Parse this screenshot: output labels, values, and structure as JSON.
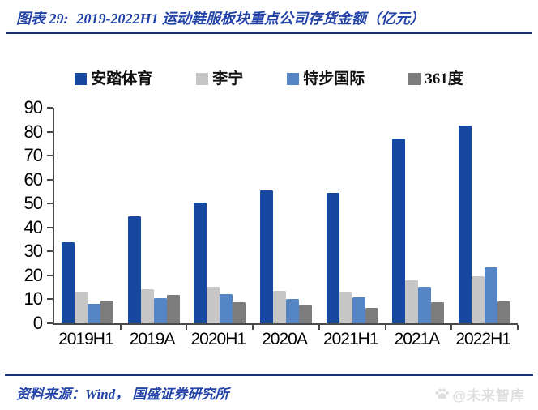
{
  "header": {
    "figure_label": "图表 29:",
    "title": "2019-2022H1 运动鞋服板块重点公司存货金额（亿元）"
  },
  "footer": {
    "source": "资料来源：Wind， 国盛证券研究所",
    "watermark": "@未来智库"
  },
  "colors": {
    "title_blue": "#2343A6",
    "rule_navy": "#1B2F73",
    "axis_gray": "#4A4A4A",
    "watermark_gray": "#DEDEDE"
  },
  "chart_data": {
    "type": "bar",
    "title": "2019-2022H1 运动鞋服板块重点公司存货金额（亿元）",
    "unit": "亿元",
    "categories": [
      "2019H1",
      "2019A",
      "2020H1",
      "2020A",
      "2021H1",
      "2021A",
      "2022H1"
    ],
    "series": [
      {
        "name": "安踏体育",
        "color": "#1648A0",
        "values": [
          34.0,
          44.5,
          50.5,
          55.5,
          54.5,
          77.0,
          82.5
        ]
      },
      {
        "name": "李宁",
        "color": "#C6C6C6",
        "values": [
          13.3,
          14.2,
          15.1,
          13.6,
          13.2,
          17.8,
          19.7
        ]
      },
      {
        "name": "特步国际",
        "color": "#5585C5",
        "values": [
          8.2,
          10.6,
          12.2,
          10.0,
          11.0,
          15.2,
          23.2
        ]
      },
      {
        "name": "361度",
        "color": "#7C7C7C",
        "values": [
          9.5,
          11.7,
          8.9,
          7.7,
          6.4,
          8.9,
          9.2
        ]
      }
    ],
    "xlabel": "",
    "ylabel": "",
    "ylim": [
      0,
      90
    ],
    "y_ticks": [
      0,
      10,
      20,
      30,
      40,
      50,
      60,
      70,
      80,
      90
    ],
    "grid": false,
    "legend_position": "top"
  }
}
